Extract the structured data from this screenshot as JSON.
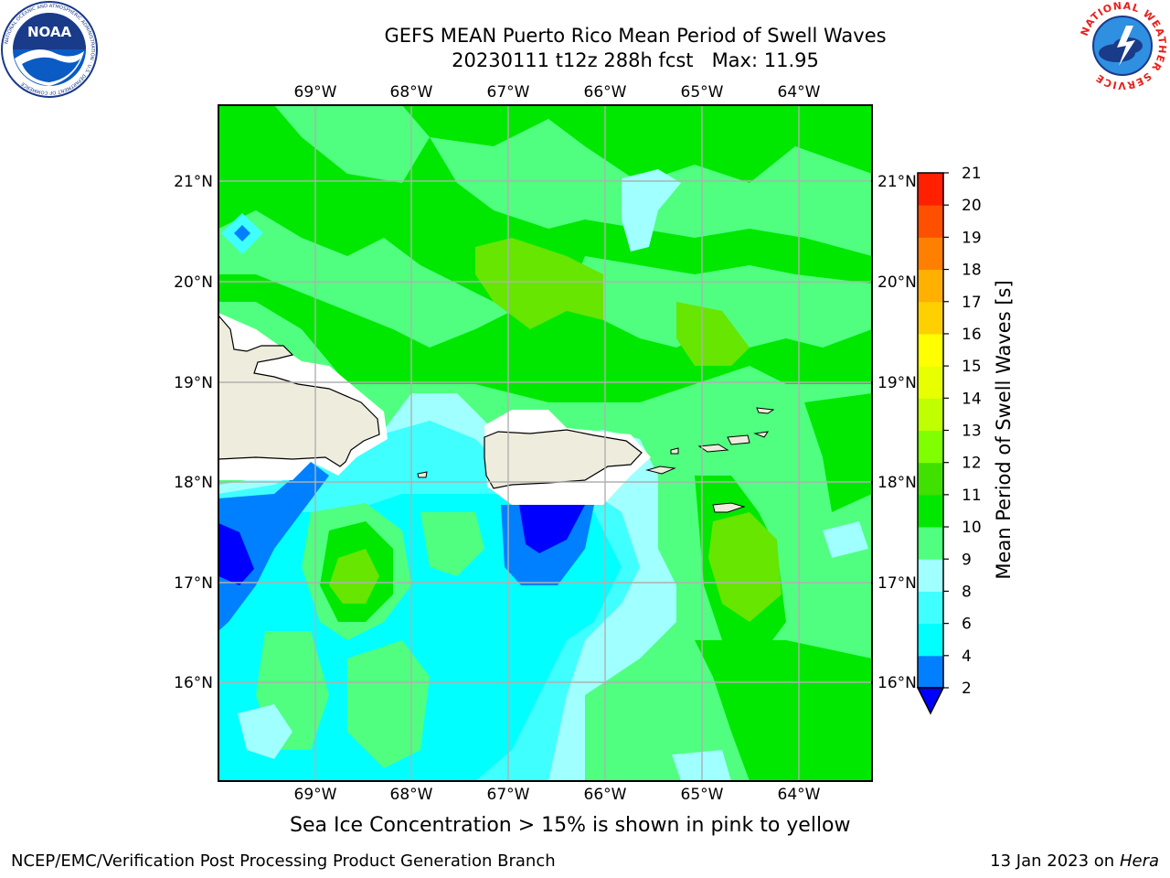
{
  "title": {
    "line1": "GEFS MEAN Puerto Rico Mean Period of Swell Waves",
    "line2": "20230111 t12z 288h fcst   Max: 11.95"
  },
  "axes": {
    "lon_labels": [
      "69°W",
      "68°W",
      "67°W",
      "66°W",
      "65°W",
      "64°W"
    ],
    "lat_labels": [
      "21°N",
      "20°N",
      "19°N",
      "18°N",
      "17°N",
      "16°N"
    ]
  },
  "colorbar": {
    "label": "Mean Period of Swell Waves [s]",
    "ticks": [
      "2",
      "4",
      "6",
      "8",
      "9",
      "10",
      "11",
      "12",
      "13",
      "14",
      "15",
      "16",
      "17",
      "18",
      "19",
      "20",
      "21"
    ],
    "colors": [
      "#0000ff",
      "#0080ff",
      "#00ffff",
      "#40ffff",
      "#a0ffff",
      "#50ff80",
      "#00e800",
      "#40e000",
      "#80ff00",
      "#c0ff00",
      "#e8ff00",
      "#ffff00",
      "#ffd000",
      "#ffb000",
      "#ff8000",
      "#ff5000",
      "#ff2000",
      "#ff0000"
    ],
    "extend": "min"
  },
  "note": "Sea Ice Concentration > 15% is shown in pink to yellow",
  "footer": {
    "left": "NCEP/EMC/Verification Post Processing Product Generation Branch",
    "date": "13 Jan 2023 on ",
    "host": "Hera"
  },
  "logos": {
    "noaa_text": "NOAA",
    "noaa_ring": "NATIONAL OCEANIC AND ATMOSPHERIC ADMINISTRATION · U.S. DEPARTMENT OF COMMERCE",
    "nws_ring": "NATIONAL WEATHER SERVICE"
  },
  "fill_colors": {
    "green_dark": "#00e800",
    "green_light": "#50ff80",
    "lime": "#66e600",
    "cyan_pale": "#a0ffff",
    "cyan": "#40ffff",
    "cyan_bright": "#00ffff",
    "blue_mid": "#0080ff",
    "blue_dark": "#0000ff",
    "land": "#eeecdc"
  }
}
